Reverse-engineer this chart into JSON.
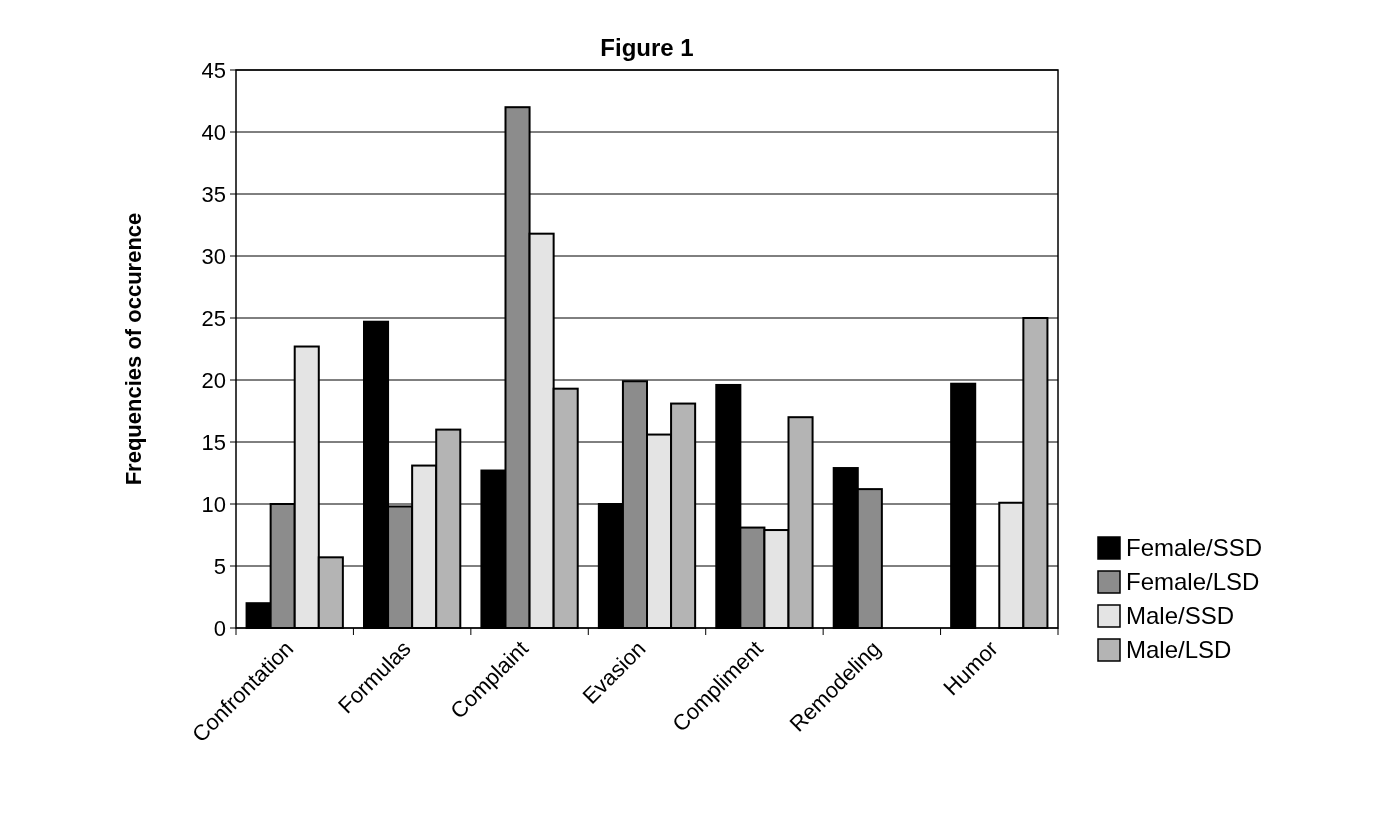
{
  "chart_data": {
    "type": "bar",
    "title": "Figure 1",
    "ylabel": "Frequencies of occurence",
    "categories": [
      "Confrontation",
      "Formulas",
      "Complaint",
      "Evasion",
      "Compliment",
      "Remodeling",
      "Humor"
    ],
    "series": [
      {
        "name": "Female/SSD",
        "color": "#000000",
        "values": [
          2,
          24.7,
          12.7,
          10,
          19.6,
          12.9,
          19.7
        ]
      },
      {
        "name": "Female/LSD",
        "color": "#8c8c8c",
        "values": [
          10,
          9.8,
          42,
          19.9,
          8.1,
          11.2,
          0
        ]
      },
      {
        "name": "Male/SSD",
        "color": "#e4e4e4",
        "values": [
          22.7,
          13.1,
          31.8,
          15.6,
          7.9,
          0,
          10.1
        ]
      },
      {
        "name": "Male/LSD",
        "color": "#b4b4b4",
        "values": [
          5.7,
          16,
          19.3,
          18.1,
          17,
          0,
          25
        ]
      }
    ],
    "ylim": [
      0,
      45
    ],
    "yticks": [
      0,
      5,
      10,
      15,
      20,
      25,
      30,
      35,
      40,
      45
    ],
    "grid": "y",
    "legend": "bottom right"
  }
}
